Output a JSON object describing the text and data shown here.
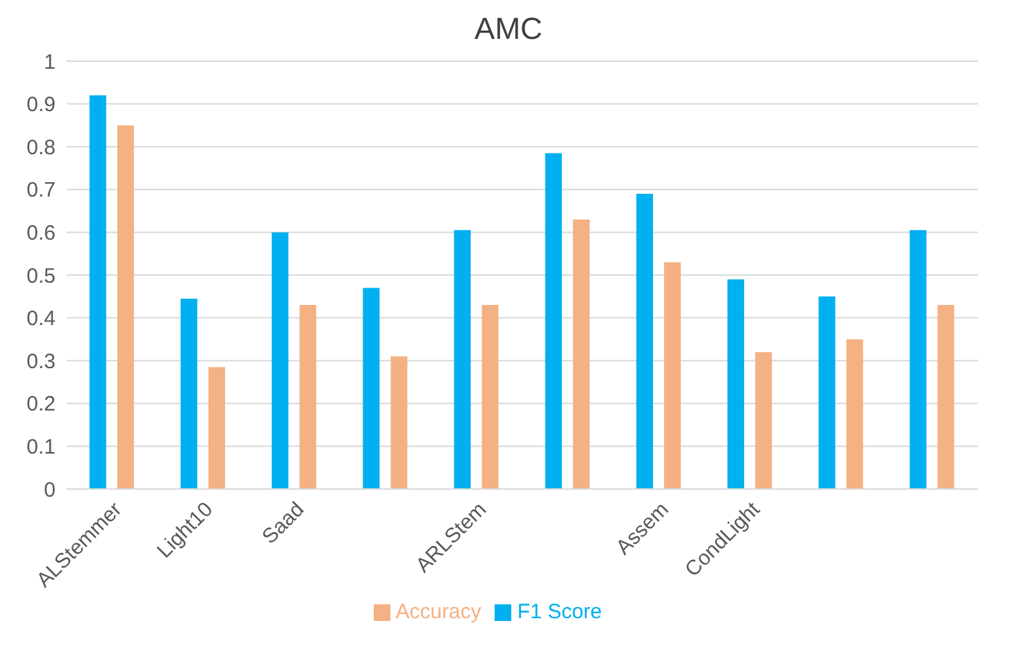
{
  "chart_data": {
    "type": "bar",
    "title": "AMC",
    "categories": [
      "ALStemmer",
      "Light10",
      "Saad",
      null,
      "ARLStem",
      null,
      "Assem",
      "CondLight",
      null,
      null
    ],
    "series": [
      {
        "name": "F1 Score",
        "color": "#00b0f0",
        "values": [
          0.92,
          0.445,
          0.6,
          0.47,
          0.605,
          0.785,
          0.69,
          0.49,
          0.45,
          0.605
        ]
      },
      {
        "name": "Accuracy",
        "color": "#f4b183",
        "values": [
          0.85,
          0.285,
          0.43,
          0.31,
          0.43,
          0.63,
          0.53,
          0.32,
          0.35,
          0.43
        ]
      }
    ],
    "ylim": [
      0,
      1
    ],
    "yticks": [
      0,
      0.1,
      0.2,
      0.3,
      0.4,
      0.5,
      0.6,
      0.7,
      0.8,
      0.9,
      1
    ],
    "grid": "y",
    "legend": "bottom"
  }
}
